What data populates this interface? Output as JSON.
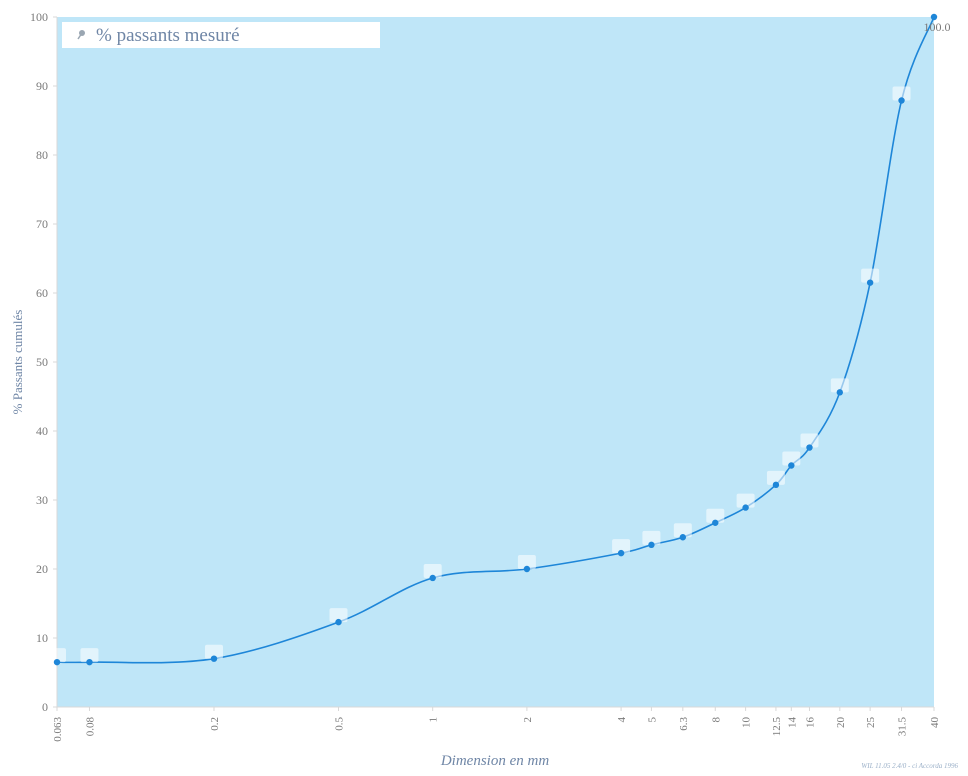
{
  "legend": {
    "label": "% passants mesuré",
    "icon": "pin-marker-icon"
  },
  "footer_note": "WIL 11.05 2.4/0 - ci Accorda 1996",
  "colors": {
    "plot_bg": "#bfe6f8",
    "series": "#1e86d8",
    "label_box": "#ffffff",
    "axis_text": "#7a7a7a",
    "axis_line": "#d8d8d8"
  },
  "chart_data": {
    "type": "line",
    "xscale": "log",
    "xlabel": "Dimension en mm",
    "ylabel": "% Passants cumulés",
    "xlim": [
      0.063,
      40
    ],
    "ylim": [
      0,
      100
    ],
    "grid": false,
    "legend_position": "top-left",
    "x_ticks": [
      {
        "value": 0.063,
        "label": "0.063"
      },
      {
        "value": 0.08,
        "label": "0.08"
      },
      {
        "value": 0.2,
        "label": "0.2"
      },
      {
        "value": 0.5,
        "label": "0.5"
      },
      {
        "value": 1,
        "label": "1"
      },
      {
        "value": 2,
        "label": "2"
      },
      {
        "value": 4,
        "label": "4"
      },
      {
        "value": 5,
        "label": "5"
      },
      {
        "value": 6.3,
        "label": "6.3"
      },
      {
        "value": 8,
        "label": "8"
      },
      {
        "value": 10,
        "label": "10"
      },
      {
        "value": 12.5,
        "label": "12.5"
      },
      {
        "value": 14,
        "label": "14"
      },
      {
        "value": 16,
        "label": "16"
      },
      {
        "value": 20,
        "label": "20"
      },
      {
        "value": 25,
        "label": "25"
      },
      {
        "value": 31.5,
        "label": "31.5"
      },
      {
        "value": 40,
        "label": "40"
      }
    ],
    "y_ticks": [
      0,
      10,
      20,
      30,
      40,
      50,
      60,
      70,
      80,
      90,
      100
    ],
    "series": [
      {
        "name": "% passants mesuré",
        "points": [
          {
            "x": 0.063,
            "y": 6.5
          },
          {
            "x": 0.08,
            "y": 6.5
          },
          {
            "x": 0.2,
            "y": 7.0
          },
          {
            "x": 0.5,
            "y": 12.3
          },
          {
            "x": 1,
            "y": 18.7
          },
          {
            "x": 2,
            "y": 20.0
          },
          {
            "x": 4,
            "y": 22.3
          },
          {
            "x": 5,
            "y": 23.5
          },
          {
            "x": 6.3,
            "y": 24.6
          },
          {
            "x": 8,
            "y": 26.7
          },
          {
            "x": 10,
            "y": 28.9
          },
          {
            "x": 12.5,
            "y": 32.2
          },
          {
            "x": 14,
            "y": 35.0
          },
          {
            "x": 16,
            "y": 37.6
          },
          {
            "x": 20,
            "y": 45.6
          },
          {
            "x": 25,
            "y": 61.5
          },
          {
            "x": 31.5,
            "y": 87.9
          },
          {
            "x": 40,
            "y": 100.0
          }
        ],
        "point_labels": [
          "",
          "",
          "",
          "",
          "",
          "",
          "",
          "",
          "",
          "",
          "",
          "",
          "",
          "",
          "",
          "",
          "",
          "100.0"
        ]
      }
    ]
  }
}
